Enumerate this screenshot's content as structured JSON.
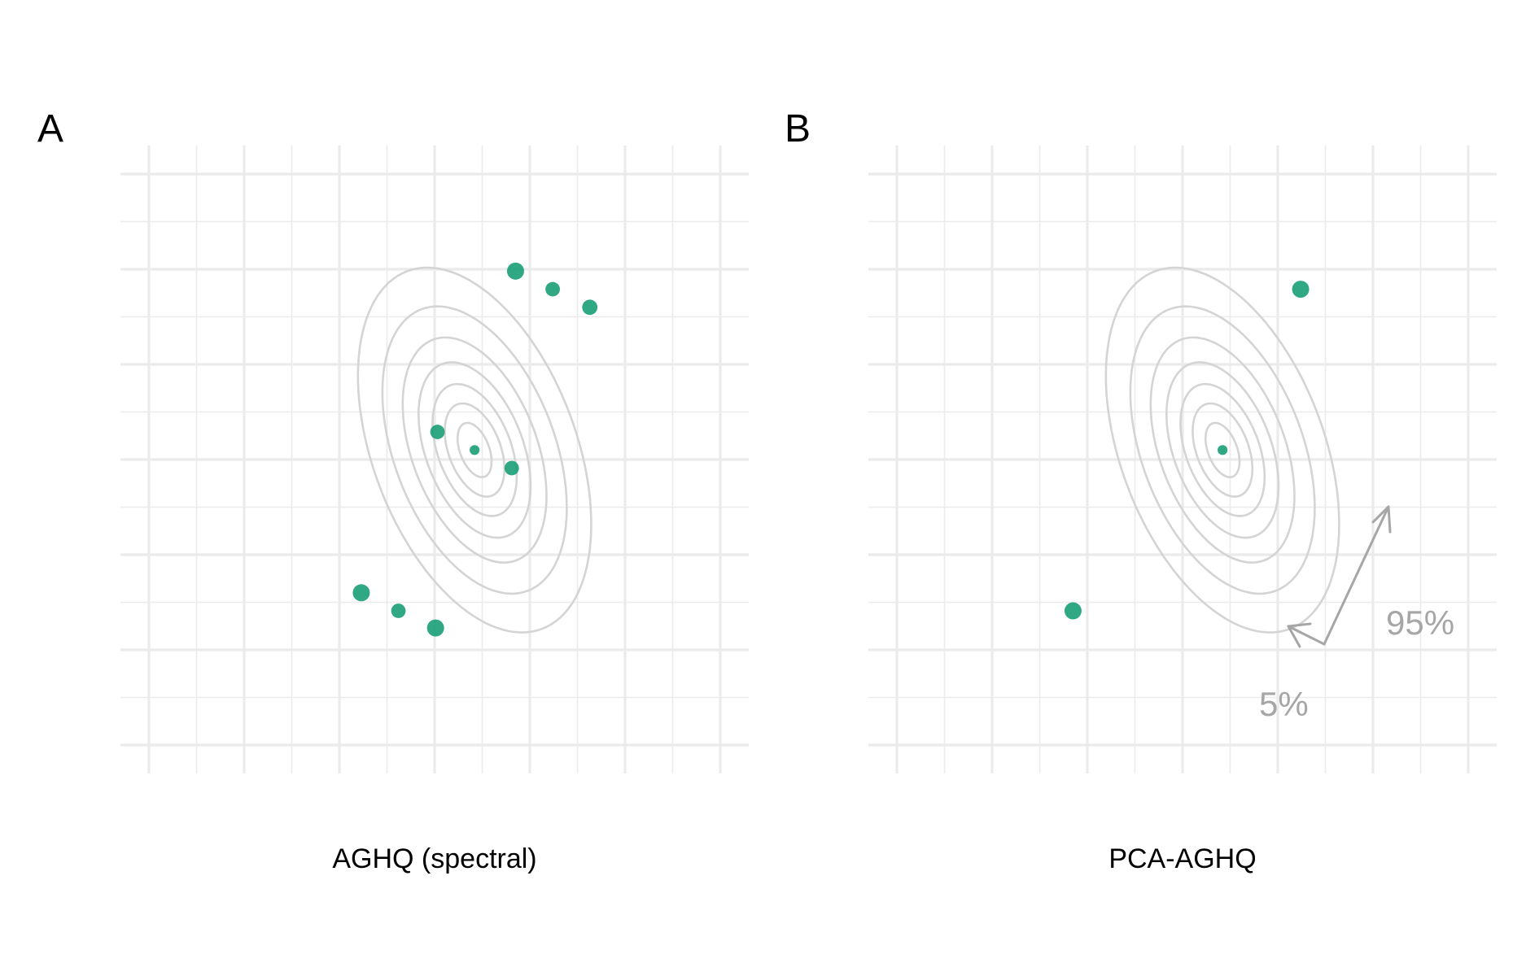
{
  "panels": [
    {
      "label": "A",
      "xlabel": "AGHQ (spectral)"
    },
    {
      "label": "B",
      "xlabel": "PCA-AGHQ"
    }
  ],
  "chart_data": [
    {
      "type": "scatter",
      "title": "",
      "panel_label": "A",
      "xlabel": "AGHQ (spectral)",
      "ylabel": "",
      "xlim": [
        -3,
        3
      ],
      "ylim": [
        -3,
        3
      ],
      "grid": true,
      "contour_levels": 7,
      "contour_center": [
        0.42,
        0.1
      ],
      "series": [
        {
          "values": [
            {
              "x": 0.42,
              "y": 0.1,
              "w": 0.02
            },
            {
              "x": 0.03,
              "y": 0.29,
              "w": 0.07
            },
            {
              "x": 0.81,
              "y": -0.09,
              "w": 0.07
            },
            {
              "x": 0.85,
              "y": 1.98,
              "w": 0.1
            },
            {
              "x": 1.24,
              "y": 1.79,
              "w": 0.07
            },
            {
              "x": 1.63,
              "y": 1.6,
              "w": 0.08
            },
            {
              "x": -0.77,
              "y": -1.4,
              "w": 0.1
            },
            {
              "x": -0.38,
              "y": -1.59,
              "w": 0.07
            },
            {
              "x": 0.01,
              "y": -1.77,
              "w": 0.1
            }
          ]
        }
      ]
    },
    {
      "type": "scatter",
      "title": "",
      "panel_label": "B",
      "xlabel": "PCA-AGHQ",
      "ylabel": "",
      "xlim": [
        -3,
        3
      ],
      "ylim": [
        -3,
        3
      ],
      "grid": true,
      "contour_levels": 7,
      "contour_center": [
        0.42,
        0.1
      ],
      "series": [
        {
          "values": [
            {
              "x": 0.42,
              "y": 0.1,
              "w": 0.02
            },
            {
              "x": 1.24,
              "y": 1.79,
              "w": 0.1
            },
            {
              "x": -1.15,
              "y": -1.59,
              "w": 0.1
            }
          ]
        }
      ],
      "annotations": [
        {
          "text": "95%"
        },
        {
          "text": "5%"
        }
      ]
    }
  ]
}
